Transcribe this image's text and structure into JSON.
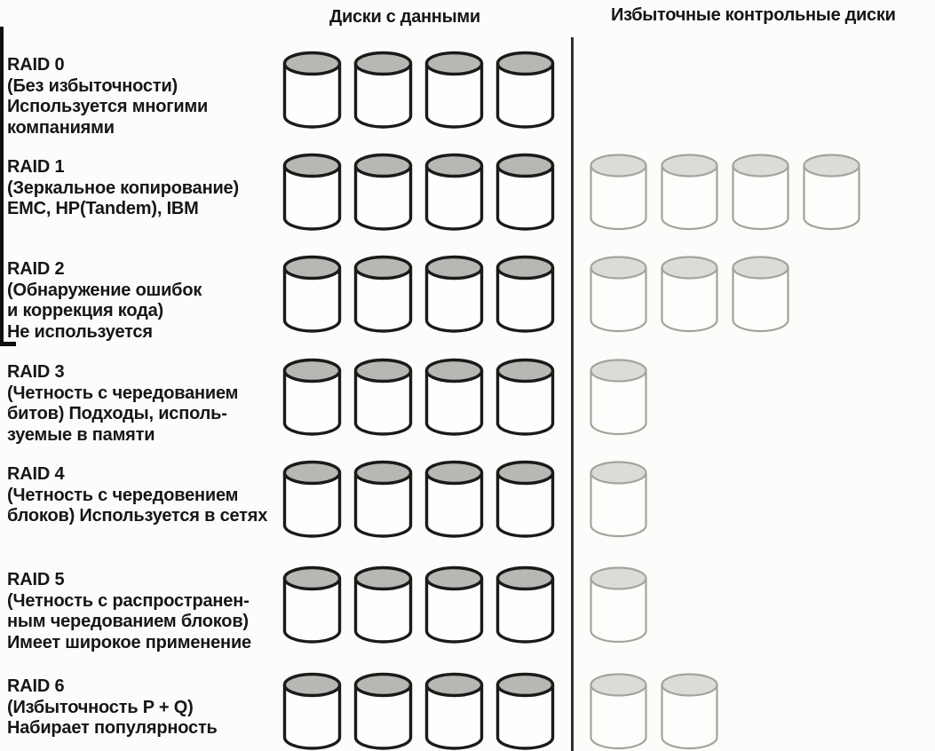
{
  "header": {
    "data_disks_label": "Диски с данными",
    "check_disks_label": "Избыточные контрольные диски"
  },
  "colors": {
    "text": "#161616",
    "divider": "#2f2f2d",
    "data_disk_outline": "#1a1a1a",
    "data_disk_top": "#b7b7b3",
    "data_disk_body": "#fefefd",
    "check_disk_outline": "#a3a39e",
    "check_disk_top": "#dcdcd6",
    "check_disk_body": "#fdfdfb"
  },
  "rows": [
    {
      "name": "RAID 0",
      "description": [
        "(Без избыточности)",
        "Используется многими",
        "компаниями"
      ],
      "data_disks": 4,
      "check_disks": 0
    },
    {
      "name": "RAID 1",
      "description": [
        "(Зеркальное копирование)",
        "EMC, HP(Tandem), IBM"
      ],
      "data_disks": 4,
      "check_disks": 4
    },
    {
      "name": "RAID 2",
      "description": [
        "(Обнаружение ошибок",
        "и коррекция кода)",
        "Не используется"
      ],
      "data_disks": 4,
      "check_disks": 3
    },
    {
      "name": "RAID 3",
      "description": [
        "(Четность с чередованием",
        "битов) Подходы, исполь-",
        "зуемые в памяти"
      ],
      "data_disks": 4,
      "check_disks": 1
    },
    {
      "name": "RAID 4",
      "description": [
        "(Четность с чередовением",
        "блоков) Используется в сетях"
      ],
      "data_disks": 4,
      "check_disks": 1
    },
    {
      "name": "RAID 5",
      "description": [
        "(Четность с распространен-",
        "ным чередованием блоков)",
        "Имеет широкое применение"
      ],
      "data_disks": 4,
      "check_disks": 1
    },
    {
      "name": "RAID 6",
      "description": [
        "(Избыточность P + Q)",
        "Набирает популярность"
      ],
      "data_disks": 4,
      "check_disks": 2
    }
  ]
}
